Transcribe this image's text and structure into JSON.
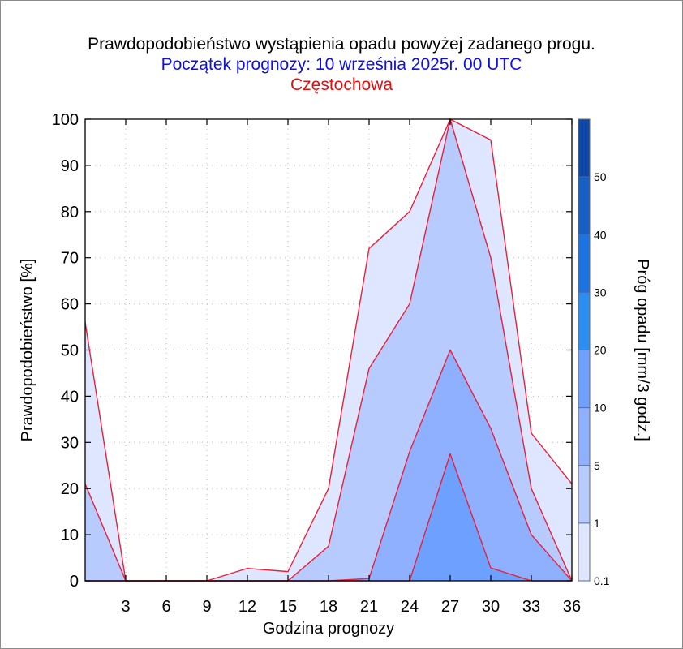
{
  "title": "Prawdopodobieństwo wystąpienia opadu powyżej zadanego progu.",
  "subtitle": "Początek prognozy: 10 września 2025r. 00 UTC",
  "location": "Częstochowa",
  "colors": {
    "title": "#000000",
    "subtitle": "#1010e0",
    "location": "#e01010",
    "outline": "#e8213a"
  },
  "chart_data": {
    "type": "area",
    "xlabel": "Godzina prognozy",
    "ylabel": "Prawdopodobieństwo [%]",
    "x": [
      0,
      3,
      6,
      9,
      12,
      15,
      18,
      21,
      24,
      27,
      30,
      33,
      36
    ],
    "xticks": [
      3,
      6,
      9,
      12,
      15,
      18,
      21,
      24,
      27,
      30,
      33,
      36
    ],
    "xlim": [
      0,
      36
    ],
    "yticks": [
      0,
      10,
      20,
      30,
      40,
      50,
      60,
      70,
      80,
      90,
      100
    ],
    "ylim": [
      0,
      100
    ],
    "grid": true,
    "series": [
      {
        "name": "0.1",
        "color": "#dfe6ff",
        "values": [
          56,
          0,
          0,
          0,
          2.7,
          2,
          20,
          72,
          80,
          100,
          95.5,
          32,
          21
        ]
      },
      {
        "name": "1",
        "color": "#b8cbff",
        "values": [
          21,
          0,
          0,
          0,
          0,
          0,
          7.5,
          46,
          60,
          100,
          70,
          20,
          0
        ]
      },
      {
        "name": "5",
        "color": "#8eb0ff",
        "values": [
          0,
          0,
          0,
          0,
          0,
          0,
          0,
          0.5,
          28,
          50,
          33,
          10,
          0
        ]
      },
      {
        "name": "10",
        "color": "#6ea0ff",
        "values": [
          0,
          0,
          0,
          0,
          0,
          0,
          0,
          0,
          0,
          27.5,
          2.8,
          0,
          0
        ]
      }
    ],
    "colorbar": {
      "label": "Próg opadu [mm/3 godz.]",
      "ticks": [
        "0.1",
        "1",
        "5",
        "10",
        "20",
        "30",
        "40",
        "50"
      ],
      "colors": [
        "#dfe6ff",
        "#b8cbff",
        "#8eb0ff",
        "#6ea0ff",
        "#2a8ef5",
        "#1a73e0",
        "#155fc6",
        "#0e48a8"
      ]
    }
  }
}
